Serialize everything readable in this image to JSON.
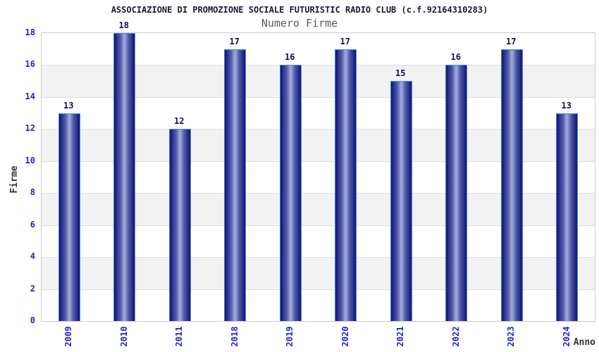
{
  "header": {
    "title": "ASSOCIAZIONE DI PROMOZIONE SOCIALE FUTURISTIC RADIO CLUB (c.f.92164310283)",
    "subtitle": "Numero Firme"
  },
  "chart_data": {
    "type": "bar",
    "title": "ASSOCIAZIONE DI PROMOZIONE SOCIALE FUTURISTIC RADIO CLUB (c.f.92164310283)",
    "subtitle": "Numero Firme",
    "categories": [
      "2009",
      "2010",
      "2011",
      "2018",
      "2019",
      "2020",
      "2021",
      "2022",
      "2023",
      "2024"
    ],
    "values": [
      13,
      18,
      12,
      17,
      16,
      17,
      15,
      16,
      17,
      13
    ],
    "xlabel": "Anno",
    "ylabel": "Firme",
    "ylim": [
      0,
      18
    ],
    "ytick_step": 2,
    "yticks": [
      0,
      2,
      4,
      6,
      8,
      10,
      12,
      14,
      16,
      18
    ],
    "grid": true,
    "band_fill_alternate": true,
    "legend_position": "none",
    "bar_value_labels": true
  },
  "colors": {
    "title": "#1a1a33",
    "subtitle": "#5a5a66",
    "axis_title": "#33333a",
    "tick_label": "#2222cc",
    "value_label": "#10105a",
    "band_gray": "#f2f2f2",
    "gridline": "#e0e0e0",
    "plot_border": "#cccccc",
    "bar_border": "#4488ee",
    "bar_dark": "#131368",
    "bar_shade": "#2a2f8e",
    "bar_mid": "#9ba5d9"
  }
}
